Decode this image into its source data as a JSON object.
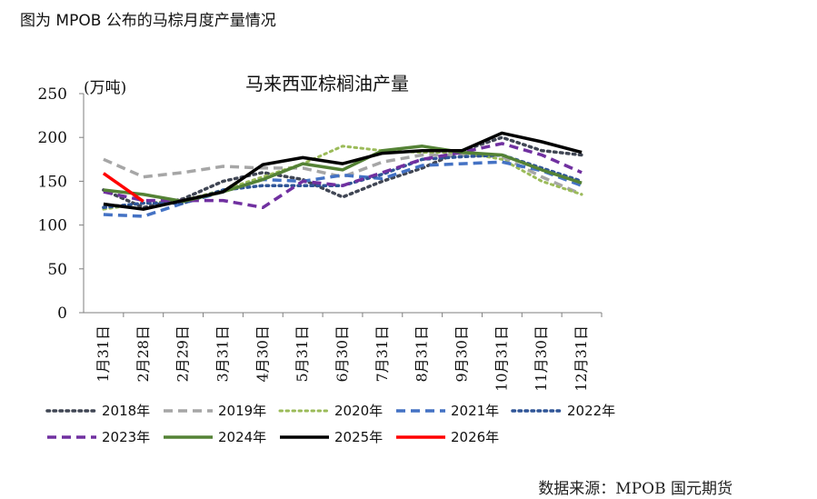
{
  "caption": "图为 MPOB 公布的马棕月度产量情况",
  "source": "数据来源：MPOB 国元期货",
  "chart_data": {
    "type": "line",
    "title": "马来西亚棕榈油产量",
    "ylabel": "(万吨)",
    "xlabel": "",
    "ylim": [
      0,
      250
    ],
    "yticks": [
      0,
      50,
      100,
      150,
      200,
      250
    ],
    "grid": false,
    "legend_position": "bottom",
    "categories": [
      "1月31日",
      "2月28日",
      "2月29日",
      "3月31日",
      "4月30日",
      "5月31日",
      "6月30日",
      "7月31日",
      "8月31日",
      "9月30日",
      "10月31日",
      "11月30日",
      "12月31日"
    ],
    "series": [
      {
        "name": "2018年",
        "color": "#404654",
        "dash": "dot",
        "width": 3.5,
        "values": [
          140,
          120,
          130,
          150,
          160,
          152,
          132,
          150,
          165,
          185,
          200,
          185,
          180
        ]
      },
      {
        "name": "2019年",
        "color": "#a6a6a6",
        "dash": "dash",
        "width": 3.5,
        "values": [
          175,
          155,
          160,
          167,
          165,
          165,
          155,
          172,
          180,
          180,
          178,
          155,
          135
        ]
      },
      {
        "name": "2020年",
        "color": "#9bbb59",
        "dash": "dot",
        "width": 3,
        "values": [
          118,
          125,
          128,
          140,
          155,
          170,
          190,
          185,
          183,
          183,
          175,
          150,
          135
        ]
      },
      {
        "name": "2021年",
        "color": "#4472c4",
        "dash": "dash",
        "width": 3.5,
        "values": [
          112,
          110,
          125,
          138,
          152,
          150,
          157,
          153,
          168,
          170,
          172,
          162,
          145
        ]
      },
      {
        "name": "2022年",
        "color": "#2f5597",
        "dash": "dot",
        "width": 3.5,
        "values": [
          120,
          125,
          125,
          140,
          145,
          145,
          145,
          158,
          175,
          178,
          180,
          165,
          150
        ]
      },
      {
        "name": "2023年",
        "color": "#7030a0",
        "dash": "dash",
        "width": 3.5,
        "values": [
          138,
          128,
          128,
          128,
          120,
          150,
          145,
          160,
          175,
          183,
          193,
          180,
          160
        ]
      },
      {
        "name": "2024年",
        "color": "#548235",
        "dash": "solid",
        "width": 3.5,
        "values": [
          140,
          135,
          127,
          138,
          152,
          170,
          163,
          185,
          190,
          183,
          180,
          163,
          148
        ]
      },
      {
        "name": "2025年",
        "color": "#000000",
        "dash": "solid",
        "width": 3.5,
        "values": [
          124,
          118,
          128,
          138,
          169,
          177,
          170,
          182,
          185,
          185,
          205,
          195,
          183
        ]
      },
      {
        "name": "2026年",
        "color": "#ff0000",
        "dash": "solid",
        "width": 3.5,
        "values": [
          159,
          127,
          null,
          null,
          null,
          null,
          null,
          null,
          null,
          null,
          null,
          null,
          null
        ]
      }
    ]
  }
}
